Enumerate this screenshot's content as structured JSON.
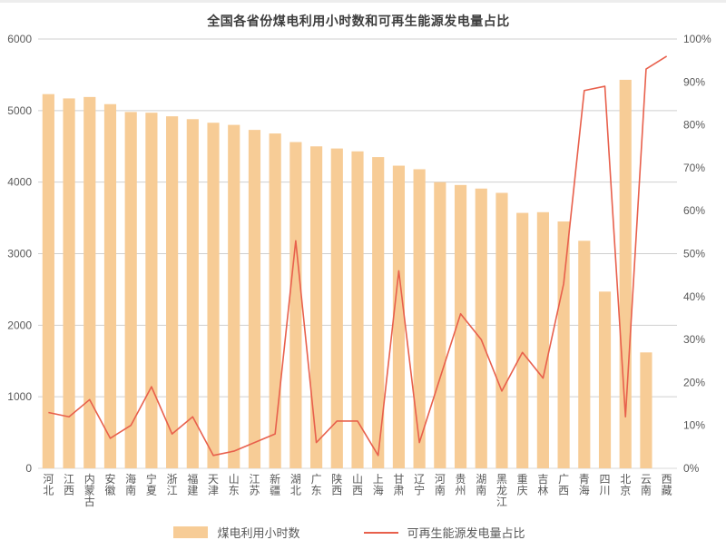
{
  "colors": {
    "bar": "#F7CC96",
    "line": "#E8604C",
    "grid": "#CFCFCF",
    "baseline": "#D9D9D9",
    "text": "#595959",
    "title": "#3D3D3D"
  },
  "chart_data": {
    "type": "bar+line",
    "title": "全国各省份煤电利用小时数和可再生能源发电量占比",
    "categories": [
      "河北",
      "江西",
      "内蒙古",
      "安徽",
      "海南",
      "宁夏",
      "浙江",
      "福建",
      "天津",
      "山东",
      "江苏",
      "新疆",
      "湖北",
      "广东",
      "陕西",
      "山西",
      "上海",
      "甘肃",
      "辽宁",
      "河南",
      "贵州",
      "湖南",
      "黑龙江",
      "重庆",
      "吉林",
      "广西",
      "青海",
      "四川",
      "北京",
      "云南",
      "西藏"
    ],
    "series": [
      {
        "name": "煤电利用小时数",
        "type": "bar",
        "axis": "left",
        "values": [
          5230,
          5170,
          5190,
          5090,
          4980,
          4970,
          4920,
          4880,
          4830,
          4800,
          4730,
          4680,
          4560,
          4500,
          4470,
          4430,
          4350,
          4230,
          4180,
          4000,
          3960,
          3910,
          3850,
          3570,
          3580,
          3450,
          3180,
          2470,
          5430,
          1620,
          0
        ]
      },
      {
        "name": "可再生能源发电量占比",
        "type": "line",
        "axis": "right",
        "values": [
          13,
          12,
          16,
          7,
          10,
          19,
          8,
          12,
          3,
          4,
          6,
          8,
          53,
          6,
          11,
          11,
          3,
          46,
          6,
          21,
          36,
          30,
          18,
          27,
          21,
          43,
          88,
          89,
          12,
          93,
          96
        ]
      }
    ],
    "left_axis": {
      "min": 0,
      "max": 6000,
      "step": 1000,
      "tick_labels": [
        "0",
        "1000",
        "2000",
        "3000",
        "4000",
        "5000",
        "6000"
      ]
    },
    "right_axis": {
      "min": 0,
      "max": 100,
      "step": 10,
      "suffix": "%",
      "tick_labels": [
        "0%",
        "10%",
        "20%",
        "30%",
        "40%",
        "50%",
        "60%",
        "70%",
        "80%",
        "90%",
        "100%"
      ]
    },
    "grid": true,
    "legend_position": "bottom"
  }
}
